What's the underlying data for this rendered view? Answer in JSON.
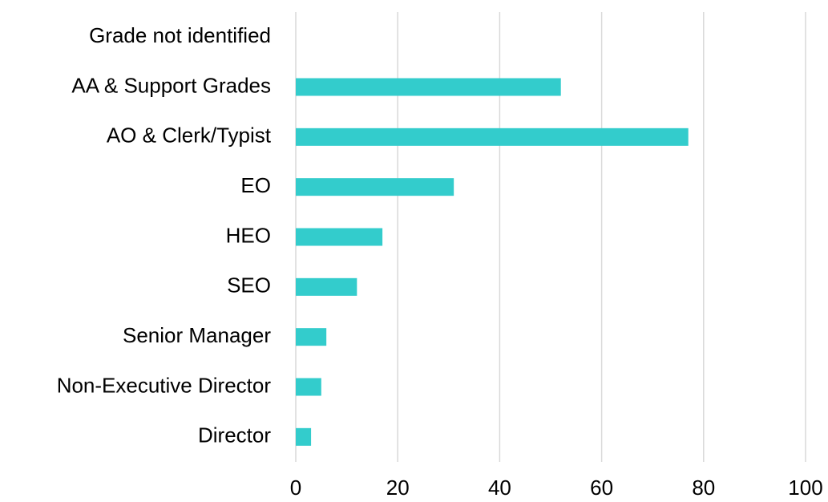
{
  "chart_data": {
    "type": "barh",
    "categories": [
      "Grade not identified",
      "AA & Support Grades",
      "AO & Clerk/Typist",
      "EO",
      "HEO",
      "SEO",
      "Senior Manager",
      "Non-Executive Director",
      "Director"
    ],
    "values": [
      0,
      52,
      77,
      31,
      17,
      12,
      6,
      5,
      3
    ],
    "color": "#33cccc",
    "xlim": [
      0,
      100
    ],
    "xticks": [
      0,
      20,
      40,
      60,
      80,
      100
    ],
    "grid": true
  }
}
